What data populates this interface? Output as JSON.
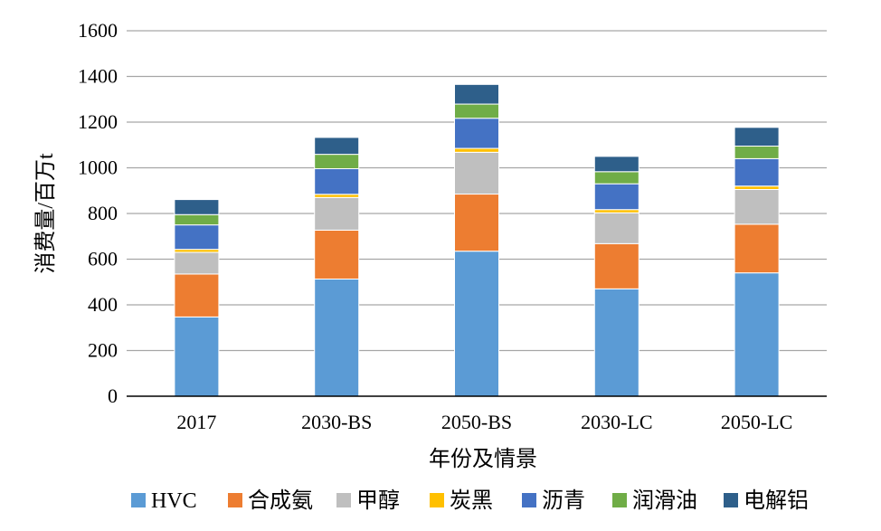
{
  "chart_data": {
    "type": "bar",
    "stacked": true,
    "categories": [
      "2017",
      "2030-BS",
      "2050-BS",
      "2030-LC",
      "2050-LC"
    ],
    "series": [
      {
        "name": "HVC",
        "color": "#5B9BD5",
        "values": [
          347,
          513,
          635,
          470,
          540
        ]
      },
      {
        "name": "合成氨",
        "color": "#ED7D31",
        "values": [
          188,
          214,
          250,
          198,
          213
        ]
      },
      {
        "name": "甲醇",
        "color": "#BFBFBF",
        "values": [
          95,
          143,
          183,
          135,
          152
        ]
      },
      {
        "name": "炭黑",
        "color": "#FFC000",
        "values": [
          13,
          14,
          17,
          14,
          15
        ]
      },
      {
        "name": "沥青",
        "color": "#4472C4",
        "values": [
          107,
          112,
          132,
          113,
          120
        ]
      },
      {
        "name": "润滑油",
        "color": "#70AD47",
        "values": [
          45,
          63,
          62,
          53,
          55
        ]
      },
      {
        "name": "电解铝",
        "color": "#2E5F8A",
        "values": [
          66,
          74,
          86,
          67,
          82
        ]
      }
    ],
    "ylim": [
      0,
      1600
    ],
    "yticks": [
      0,
      200,
      400,
      600,
      800,
      1000,
      1200,
      1400,
      1600
    ],
    "xlabel": "年份及情景",
    "ylabel": "消费量/百万t",
    "grid": true,
    "legend": "bottom"
  }
}
